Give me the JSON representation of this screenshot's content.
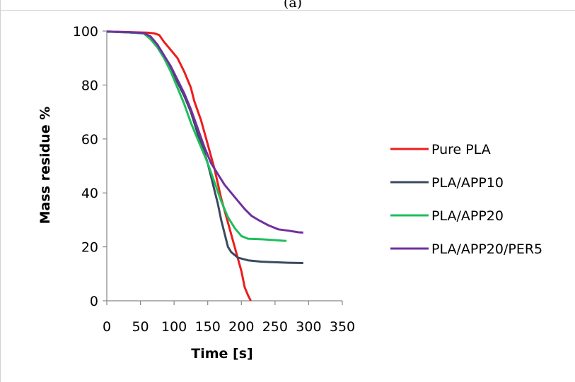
{
  "chart_data": {
    "type": "line",
    "panel_label": "(a)",
    "title": "",
    "xlabel": "Time [s]",
    "ylabel": "Mass residue %",
    "xlim": [
      0,
      350
    ],
    "ylim": [
      0,
      100
    ],
    "x_ticks": [
      "0",
      "50",
      "100",
      "150",
      "200",
      "250",
      "300",
      "350"
    ],
    "y_ticks": [
      "0",
      "20",
      "40",
      "60",
      "80",
      "100"
    ],
    "grid": false,
    "legend_position": "right",
    "series": [
      {
        "name": "Pure PLA",
        "color": "#ee1c1c",
        "points": [
          [
            0,
            99.8
          ],
          [
            30,
            99.6
          ],
          [
            60,
            99.4
          ],
          [
            70,
            99.2
          ],
          [
            78,
            98.5
          ],
          [
            85,
            96
          ],
          [
            95,
            93
          ],
          [
            105,
            90
          ],
          [
            115,
            85
          ],
          [
            125,
            79
          ],
          [
            130,
            74
          ],
          [
            140,
            67
          ],
          [
            150,
            58
          ],
          [
            160,
            49
          ],
          [
            170,
            38
          ],
          [
            180,
            29
          ],
          [
            190,
            20
          ],
          [
            200,
            11
          ],
          [
            205,
            5
          ],
          [
            210,
            2
          ],
          [
            214,
            0
          ]
        ]
      },
      {
        "name": "PLA/APP10",
        "color": "#3b4a5e",
        "points": [
          [
            0,
            99.8
          ],
          [
            30,
            99.5
          ],
          [
            55,
            99.2
          ],
          [
            65,
            98
          ],
          [
            75,
            95
          ],
          [
            85,
            91
          ],
          [
            95,
            86
          ],
          [
            105,
            81
          ],
          [
            115,
            76
          ],
          [
            125,
            70
          ],
          [
            135,
            62
          ],
          [
            145,
            55
          ],
          [
            150,
            51
          ],
          [
            155,
            46
          ],
          [
            160,
            41
          ],
          [
            165,
            36
          ],
          [
            170,
            30
          ],
          [
            175,
            25
          ],
          [
            180,
            20
          ],
          [
            185,
            18
          ],
          [
            195,
            16
          ],
          [
            210,
            15
          ],
          [
            230,
            14.5
          ],
          [
            250,
            14.3
          ],
          [
            270,
            14.1
          ],
          [
            292,
            14
          ]
        ]
      },
      {
        "name": "PLA/APP20",
        "color": "#1dbf5b",
        "points": [
          [
            0,
            99.8
          ],
          [
            30,
            99.5
          ],
          [
            55,
            99.1
          ],
          [
            65,
            97
          ],
          [
            75,
            94
          ],
          [
            85,
            90
          ],
          [
            95,
            85
          ],
          [
            105,
            79
          ],
          [
            115,
            73
          ],
          [
            125,
            66
          ],
          [
            135,
            60
          ],
          [
            145,
            54
          ],
          [
            150,
            51
          ],
          [
            160,
            44
          ],
          [
            170,
            37
          ],
          [
            180,
            31
          ],
          [
            190,
            27
          ],
          [
            200,
            24
          ],
          [
            210,
            23
          ],
          [
            230,
            22.8
          ],
          [
            250,
            22.5
          ],
          [
            267,
            22.2
          ]
        ]
      },
      {
        "name": "PLA/APP20/PER5",
        "color": "#7030a0",
        "points": [
          [
            0,
            99.8
          ],
          [
            30,
            99.6
          ],
          [
            55,
            99.3
          ],
          [
            65,
            98
          ],
          [
            75,
            95
          ],
          [
            85,
            91
          ],
          [
            95,
            87
          ],
          [
            105,
            82
          ],
          [
            115,
            77
          ],
          [
            125,
            71
          ],
          [
            135,
            64
          ],
          [
            145,
            57
          ],
          [
            155,
            51
          ],
          [
            165,
            47
          ],
          [
            175,
            43
          ],
          [
            185,
            40
          ],
          [
            195,
            37
          ],
          [
            205,
            34
          ],
          [
            215,
            31.5
          ],
          [
            225,
            30
          ],
          [
            240,
            28
          ],
          [
            255,
            26.5
          ],
          [
            270,
            26
          ],
          [
            285,
            25.4
          ],
          [
            292,
            25.3
          ]
        ]
      }
    ]
  }
}
